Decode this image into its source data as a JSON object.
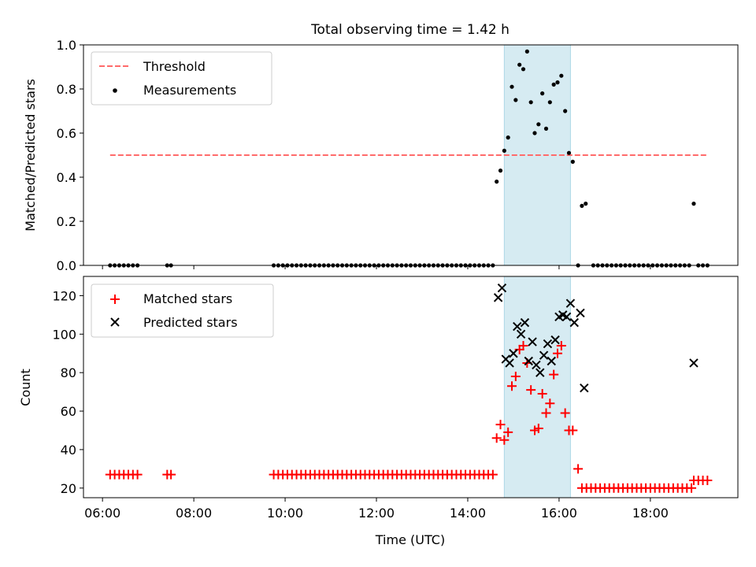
{
  "chart_data": [
    {
      "type": "scatter",
      "title": "Total observing time = 1.42 h",
      "xlabel": "",
      "ylabel": "Matched/Predicted stars",
      "xlim": [
        "05:35",
        "19:55"
      ],
      "ylim": [
        0,
        1.0
      ],
      "yticks": [
        "0.0",
        "0.2",
        "0.4",
        "0.6",
        "0.8",
        "1.0"
      ],
      "highlight_span": {
        "start": "14:48",
        "end": "16:15",
        "color": "#add8e6"
      },
      "threshold": {
        "name": "Threshold",
        "value": 0.5,
        "x_start": "06:10",
        "x_end": "19:15",
        "color": "#ff6b6b"
      },
      "legend": {
        "placement": "upper left",
        "entries": [
          "Threshold",
          "Measurements"
        ]
      },
      "series": [
        {
          "name": "Measurements",
          "color": "#000000",
          "points": [
            [
              "06:10",
              0
            ],
            [
              "06:16",
              0
            ],
            [
              "06:22",
              0
            ],
            [
              "06:28",
              0
            ],
            [
              "06:34",
              0
            ],
            [
              "06:40",
              0
            ],
            [
              "06:46",
              0
            ],
            [
              "07:25",
              0
            ],
            [
              "07:30",
              0
            ],
            [
              "09:45",
              0
            ],
            [
              "09:51",
              0
            ],
            [
              "09:57",
              0
            ],
            [
              "10:03",
              0
            ],
            [
              "10:09",
              0
            ],
            [
              "10:15",
              0
            ],
            [
              "10:21",
              0
            ],
            [
              "10:27",
              0
            ],
            [
              "10:33",
              0
            ],
            [
              "10:39",
              0
            ],
            [
              "10:45",
              0
            ],
            [
              "10:51",
              0
            ],
            [
              "10:57",
              0
            ],
            [
              "11:03",
              0
            ],
            [
              "11:09",
              0
            ],
            [
              "11:15",
              0
            ],
            [
              "11:21",
              0
            ],
            [
              "11:27",
              0
            ],
            [
              "11:33",
              0
            ],
            [
              "11:39",
              0
            ],
            [
              "11:45",
              0
            ],
            [
              "11:51",
              0
            ],
            [
              "11:57",
              0
            ],
            [
              "12:03",
              0
            ],
            [
              "12:09",
              0
            ],
            [
              "12:15",
              0
            ],
            [
              "12:21",
              0
            ],
            [
              "12:27",
              0
            ],
            [
              "12:33",
              0
            ],
            [
              "12:39",
              0
            ],
            [
              "12:45",
              0
            ],
            [
              "12:51",
              0
            ],
            [
              "12:57",
              0
            ],
            [
              "13:03",
              0
            ],
            [
              "13:09",
              0
            ],
            [
              "13:15",
              0
            ],
            [
              "13:21",
              0
            ],
            [
              "13:27",
              0
            ],
            [
              "13:33",
              0
            ],
            [
              "13:39",
              0
            ],
            [
              "13:45",
              0
            ],
            [
              "13:51",
              0
            ],
            [
              "13:57",
              0
            ],
            [
              "14:03",
              0
            ],
            [
              "14:09",
              0
            ],
            [
              "14:15",
              0
            ],
            [
              "14:21",
              0
            ],
            [
              "14:27",
              0
            ],
            [
              "14:33",
              0
            ],
            [
              "14:38",
              0.38
            ],
            [
              "14:43",
              0.43
            ],
            [
              "14:48",
              0.52
            ],
            [
              "14:53",
              0.58
            ],
            [
              "14:58",
              0.81
            ],
            [
              "15:03",
              0.75
            ],
            [
              "15:08",
              0.91
            ],
            [
              "15:13",
              0.89
            ],
            [
              "15:18",
              0.97
            ],
            [
              "15:23",
              0.74
            ],
            [
              "15:28",
              0.6
            ],
            [
              "15:33",
              0.64
            ],
            [
              "15:38",
              0.78
            ],
            [
              "15:43",
              0.62
            ],
            [
              "15:48",
              0.74
            ],
            [
              "15:53",
              0.82
            ],
            [
              "15:58",
              0.83
            ],
            [
              "16:03",
              0.86
            ],
            [
              "16:08",
              0.7
            ],
            [
              "16:13",
              0.51
            ],
            [
              "16:18",
              0.47
            ],
            [
              "16:25",
              0
            ],
            [
              "16:30",
              0.27
            ],
            [
              "16:35",
              0.28
            ],
            [
              "16:45",
              0
            ],
            [
              "16:51",
              0
            ],
            [
              "16:57",
              0
            ],
            [
              "17:03",
              0
            ],
            [
              "17:09",
              0
            ],
            [
              "17:15",
              0
            ],
            [
              "17:21",
              0
            ],
            [
              "17:27",
              0
            ],
            [
              "17:33",
              0
            ],
            [
              "17:39",
              0
            ],
            [
              "17:45",
              0
            ],
            [
              "17:51",
              0
            ],
            [
              "17:57",
              0
            ],
            [
              "18:03",
              0
            ],
            [
              "18:09",
              0
            ],
            [
              "18:15",
              0
            ],
            [
              "18:21",
              0
            ],
            [
              "18:27",
              0
            ],
            [
              "18:33",
              0
            ],
            [
              "18:39",
              0
            ],
            [
              "18:45",
              0
            ],
            [
              "18:51",
              0
            ],
            [
              "18:57",
              0.28
            ],
            [
              "19:03",
              0
            ],
            [
              "19:09",
              0
            ],
            [
              "19:15",
              0
            ]
          ]
        }
      ]
    },
    {
      "type": "scatter",
      "title": "",
      "xlabel": "Time (UTC)",
      "ylabel": "Count",
      "xlim": [
        "05:35",
        "19:55"
      ],
      "ylim": [
        15,
        130
      ],
      "xticks": [
        "06:00",
        "08:00",
        "10:00",
        "12:00",
        "14:00",
        "16:00",
        "18:00"
      ],
      "yticks": [
        "20",
        "40",
        "60",
        "80",
        "100",
        "120"
      ],
      "highlight_span": {
        "start": "14:48",
        "end": "16:15",
        "color": "#add8e6"
      },
      "legend": {
        "placement": "upper left",
        "entries": [
          "Matched stars",
          "Predicted stars"
        ]
      },
      "series": [
        {
          "name": "Matched stars",
          "marker": "plus",
          "color": "#ff0000",
          "points": [
            [
              "06:10",
              27
            ],
            [
              "06:16",
              27
            ],
            [
              "06:22",
              27
            ],
            [
              "06:28",
              27
            ],
            [
              "06:34",
              27
            ],
            [
              "06:40",
              27
            ],
            [
              "06:46",
              27
            ],
            [
              "07:25",
              27
            ],
            [
              "07:30",
              27
            ],
            [
              "09:45",
              27
            ],
            [
              "09:51",
              27
            ],
            [
              "09:57",
              27
            ],
            [
              "10:03",
              27
            ],
            [
              "10:09",
              27
            ],
            [
              "10:15",
              27
            ],
            [
              "10:21",
              27
            ],
            [
              "10:27",
              27
            ],
            [
              "10:33",
              27
            ],
            [
              "10:39",
              27
            ],
            [
              "10:45",
              27
            ],
            [
              "10:51",
              27
            ],
            [
              "10:57",
              27
            ],
            [
              "11:03",
              27
            ],
            [
              "11:09",
              27
            ],
            [
              "11:15",
              27
            ],
            [
              "11:21",
              27
            ],
            [
              "11:27",
              27
            ],
            [
              "11:33",
              27
            ],
            [
              "11:39",
              27
            ],
            [
              "11:45",
              27
            ],
            [
              "11:51",
              27
            ],
            [
              "11:57",
              27
            ],
            [
              "12:03",
              27
            ],
            [
              "12:09",
              27
            ],
            [
              "12:15",
              27
            ],
            [
              "12:21",
              27
            ],
            [
              "12:27",
              27
            ],
            [
              "12:33",
              27
            ],
            [
              "12:39",
              27
            ],
            [
              "12:45",
              27
            ],
            [
              "12:51",
              27
            ],
            [
              "12:57",
              27
            ],
            [
              "13:03",
              27
            ],
            [
              "13:09",
              27
            ],
            [
              "13:15",
              27
            ],
            [
              "13:21",
              27
            ],
            [
              "13:27",
              27
            ],
            [
              "13:33",
              27
            ],
            [
              "13:39",
              27
            ],
            [
              "13:45",
              27
            ],
            [
              "13:51",
              27
            ],
            [
              "13:57",
              27
            ],
            [
              "14:03",
              27
            ],
            [
              "14:09",
              27
            ],
            [
              "14:15",
              27
            ],
            [
              "14:21",
              27
            ],
            [
              "14:27",
              27
            ],
            [
              "14:33",
              27
            ],
            [
              "14:38",
              46
            ],
            [
              "14:43",
              53
            ],
            [
              "14:48",
              45
            ],
            [
              "14:53",
              49
            ],
            [
              "14:58",
              73
            ],
            [
              "15:03",
              78
            ],
            [
              "15:08",
              92
            ],
            [
              "15:13",
              94
            ],
            [
              "15:18",
              85
            ],
            [
              "15:23",
              71
            ],
            [
              "15:28",
              50
            ],
            [
              "15:33",
              51
            ],
            [
              "15:38",
              69
            ],
            [
              "15:43",
              59
            ],
            [
              "15:48",
              64
            ],
            [
              "15:53",
              79
            ],
            [
              "15:58",
              90
            ],
            [
              "16:03",
              94
            ],
            [
              "16:08",
              59
            ],
            [
              "16:13",
              50
            ],
            [
              "16:18",
              50
            ],
            [
              "16:25",
              30
            ],
            [
              "16:30",
              20
            ],
            [
              "16:36",
              20
            ],
            [
              "16:42",
              20
            ],
            [
              "16:48",
              20
            ],
            [
              "16:54",
              20
            ],
            [
              "17:00",
              20
            ],
            [
              "17:06",
              20
            ],
            [
              "17:12",
              20
            ],
            [
              "17:18",
              20
            ],
            [
              "17:24",
              20
            ],
            [
              "17:30",
              20
            ],
            [
              "17:36",
              20
            ],
            [
              "17:42",
              20
            ],
            [
              "17:48",
              20
            ],
            [
              "17:54",
              20
            ],
            [
              "18:00",
              20
            ],
            [
              "18:06",
              20
            ],
            [
              "18:12",
              20
            ],
            [
              "18:18",
              20
            ],
            [
              "18:24",
              20
            ],
            [
              "18:30",
              20
            ],
            [
              "18:36",
              20
            ],
            [
              "18:42",
              20
            ],
            [
              "18:48",
              20
            ],
            [
              "18:54",
              20
            ],
            [
              "18:57",
              24
            ],
            [
              "19:03",
              24
            ],
            [
              "19:09",
              24
            ],
            [
              "19:15",
              24
            ]
          ]
        },
        {
          "name": "Predicted stars",
          "marker": "x",
          "color": "#000000",
          "points": [
            [
              "14:40",
              119
            ],
            [
              "14:45",
              124
            ],
            [
              "14:50",
              87
            ],
            [
              "14:55",
              85
            ],
            [
              "15:00",
              90
            ],
            [
              "15:05",
              104
            ],
            [
              "15:10",
              100
            ],
            [
              "15:15",
              106
            ],
            [
              "15:20",
              86
            ],
            [
              "15:25",
              96
            ],
            [
              "15:30",
              84
            ],
            [
              "15:35",
              80
            ],
            [
              "15:40",
              89
            ],
            [
              "15:45",
              95
            ],
            [
              "15:50",
              86
            ],
            [
              "15:55",
              97
            ],
            [
              "16:00",
              109
            ],
            [
              "16:05",
              110
            ],
            [
              "16:10",
              109
            ],
            [
              "16:15",
              116
            ],
            [
              "16:20",
              106
            ],
            [
              "16:28",
              111
            ],
            [
              "16:33",
              72
            ],
            [
              "18:57",
              85
            ]
          ]
        }
      ]
    }
  ]
}
